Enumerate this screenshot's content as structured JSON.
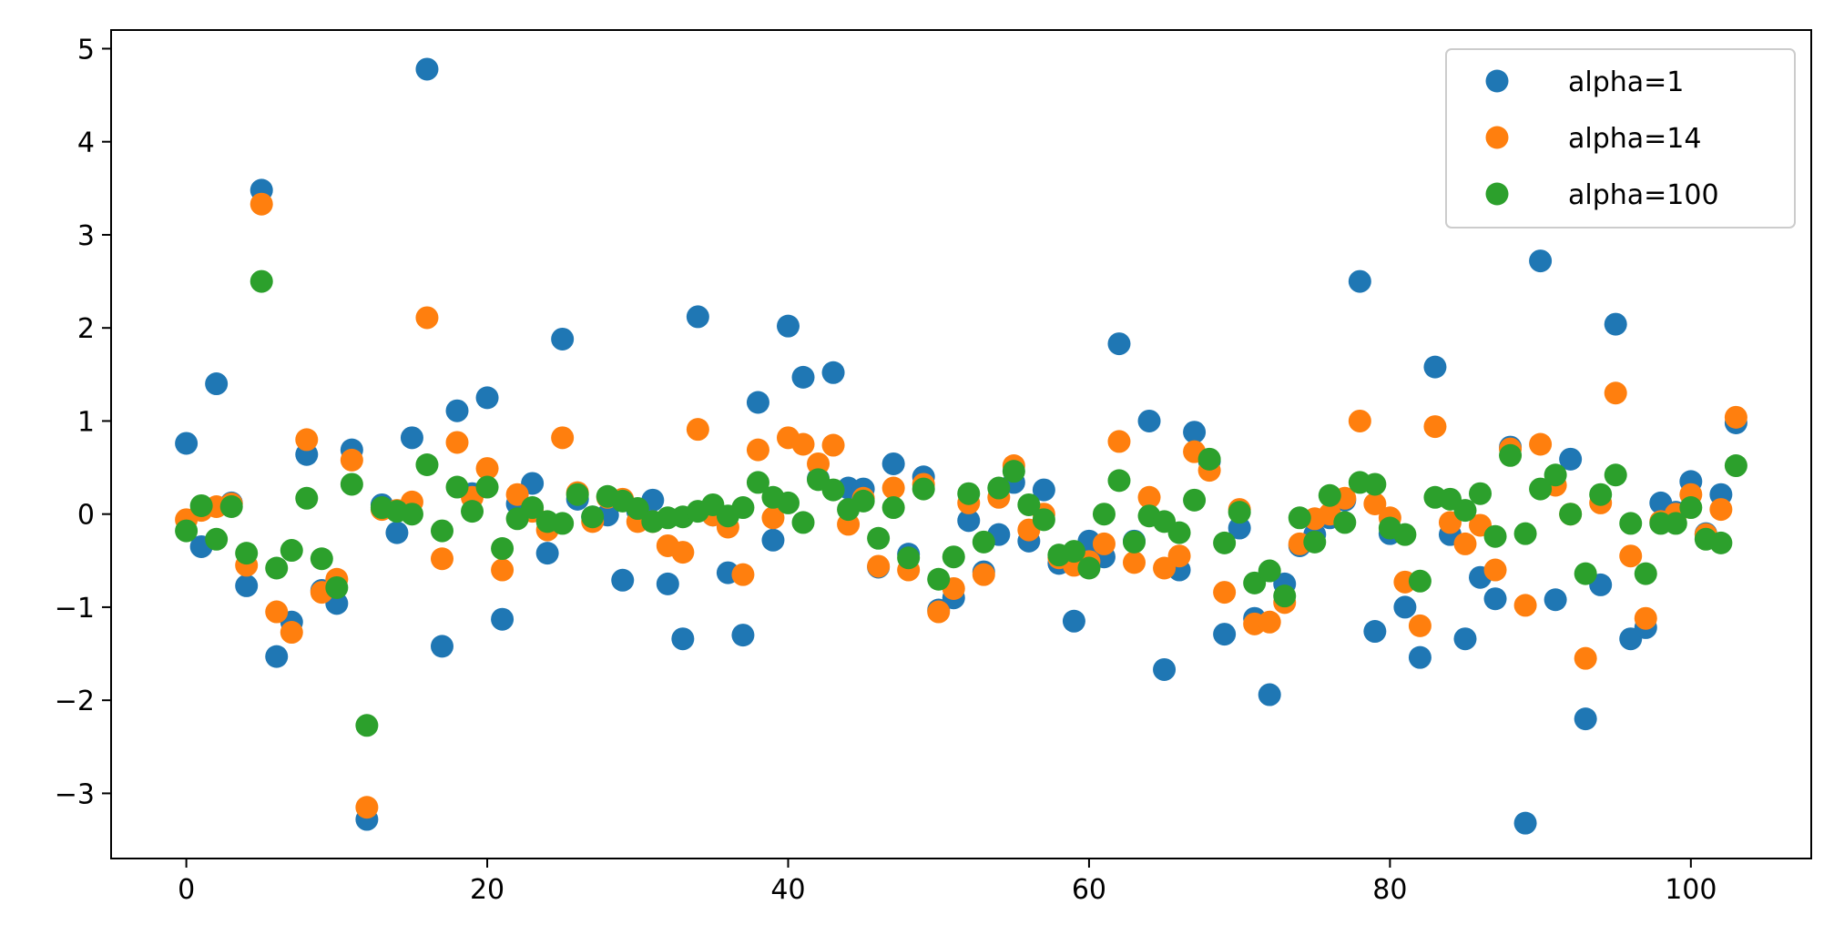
{
  "chart_data": {
    "type": "scatter",
    "xlim": [
      -5,
      108
    ],
    "ylim": [
      -3.7,
      5.2
    ],
    "x_ticks": [
      0,
      20,
      40,
      60,
      80,
      100
    ],
    "y_ticks": [
      -3,
      -2,
      -1,
      0,
      1,
      2,
      3,
      4,
      5
    ],
    "x_tick_labels": [
      "0",
      "20",
      "40",
      "60",
      "80",
      "100"
    ],
    "y_tick_labels": [
      "−3",
      "−2",
      "−1",
      "0",
      "1",
      "2",
      "3",
      "4",
      "5"
    ],
    "grid": false,
    "legend_position": "top-right",
    "series": [
      {
        "name": "alpha=1",
        "color": "#1f77b4",
        "y": [
          0.76,
          -0.35,
          1.4,
          0.12,
          -0.77,
          3.48,
          -1.53,
          -1.16,
          0.64,
          -0.82,
          -0.96,
          0.69,
          -3.28,
          0.1,
          -0.2,
          0.82,
          4.78,
          -1.42,
          1.11,
          0.22,
          1.25,
          -1.13,
          0.11,
          0.33,
          -0.42,
          1.88,
          0.16,
          -0.03,
          -0.01,
          -0.71,
          0.03,
          0.15,
          -0.75,
          -1.34,
          2.12,
          -0.01,
          -0.63,
          -1.3,
          1.2,
          -0.28,
          2.02,
          1.47,
          0.38,
          1.52,
          0.28,
          0.27,
          -0.57,
          0.54,
          -0.43,
          0.4,
          -1.03,
          -0.9,
          -0.07,
          -0.62,
          -0.22,
          0.34,
          -0.29,
          0.26,
          -0.53,
          -1.15,
          -0.29,
          -0.46,
          1.83,
          -0.29,
          1.0,
          -1.67,
          -0.6,
          0.88,
          0.57,
          -1.29,
          -0.15,
          -1.12,
          -1.94,
          -0.75,
          -0.34,
          -0.22,
          -0.04,
          0.15,
          2.5,
          -1.26,
          -0.21,
          -1.0,
          -1.54,
          1.58,
          -0.22,
          -1.34,
          -0.68,
          -0.91,
          0.72,
          -3.32,
          2.72,
          -0.92,
          0.59,
          -2.2,
          -0.76,
          2.04,
          -1.34,
          -1.22,
          0.12,
          0.02,
          0.35,
          -0.21,
          0.21,
          0.98
        ]
      },
      {
        "name": "alpha=14",
        "color": "#ff7f0e",
        "y": [
          -0.06,
          0.04,
          0.08,
          0.11,
          -0.55,
          3.33,
          -1.05,
          -1.27,
          0.8,
          -0.84,
          -0.7,
          0.58,
          -3.15,
          0.05,
          0.04,
          0.13,
          2.11,
          -0.48,
          0.77,
          0.18,
          0.49,
          -0.6,
          0.21,
          0.03,
          -0.17,
          0.82,
          0.23,
          -0.08,
          0.18,
          0.16,
          -0.08,
          -0.08,
          -0.34,
          -0.41,
          0.91,
          -0.01,
          -0.14,
          -0.65,
          0.69,
          -0.04,
          0.82,
          0.75,
          0.54,
          0.74,
          -0.11,
          0.17,
          -0.56,
          0.28,
          -0.6,
          0.32,
          -1.05,
          -0.8,
          0.12,
          -0.65,
          0.18,
          0.52,
          -0.17,
          0.0,
          -0.47,
          -0.55,
          -0.51,
          -0.32,
          0.78,
          -0.52,
          0.18,
          -0.58,
          -0.45,
          0.67,
          0.47,
          -0.84,
          0.05,
          -1.18,
          -1.16,
          -0.95,
          -0.32,
          -0.05,
          0.0,
          0.17,
          1.0,
          0.11,
          -0.04,
          -0.73,
          -1.2,
          0.94,
          -0.09,
          -0.32,
          -0.12,
          -0.6,
          0.7,
          -0.98,
          0.75,
          0.31,
          0.0,
          -1.55,
          0.12,
          1.3,
          -0.45,
          -1.12,
          -0.08,
          0.0,
          0.21,
          -0.22,
          0.05,
          1.04
        ]
      },
      {
        "name": "alpha=100",
        "color": "#2ca02c",
        "y": [
          -0.18,
          0.09,
          -0.27,
          0.08,
          -0.42,
          2.5,
          -0.58,
          -0.39,
          0.17,
          -0.48,
          -0.79,
          0.32,
          -2.27,
          0.07,
          0.03,
          0.0,
          0.53,
          -0.18,
          0.29,
          0.03,
          0.29,
          -0.37,
          -0.05,
          0.07,
          -0.08,
          -0.1,
          0.21,
          -0.03,
          0.19,
          0.14,
          0.06,
          -0.08,
          -0.04,
          -0.03,
          0.03,
          0.1,
          -0.02,
          0.07,
          0.34,
          0.18,
          0.12,
          -0.09,
          0.37,
          0.26,
          0.05,
          0.14,
          -0.26,
          0.07,
          -0.47,
          0.27,
          -0.7,
          -0.46,
          0.22,
          -0.3,
          0.28,
          0.46,
          0.1,
          -0.06,
          -0.44,
          -0.4,
          -0.58,
          0.0,
          0.36,
          -0.3,
          -0.02,
          -0.08,
          -0.2,
          0.15,
          0.59,
          -0.31,
          0.02,
          -0.74,
          -0.61,
          -0.88,
          -0.04,
          -0.3,
          0.2,
          -0.09,
          0.34,
          0.32,
          -0.15,
          -0.22,
          -0.72,
          0.18,
          0.16,
          0.04,
          0.22,
          -0.24,
          0.63,
          -0.21,
          0.27,
          0.42,
          0.0,
          -0.64,
          0.21,
          0.42,
          -0.1,
          -0.64,
          -0.1,
          -0.1,
          0.07,
          -0.27,
          -0.31,
          0.52
        ]
      }
    ]
  }
}
